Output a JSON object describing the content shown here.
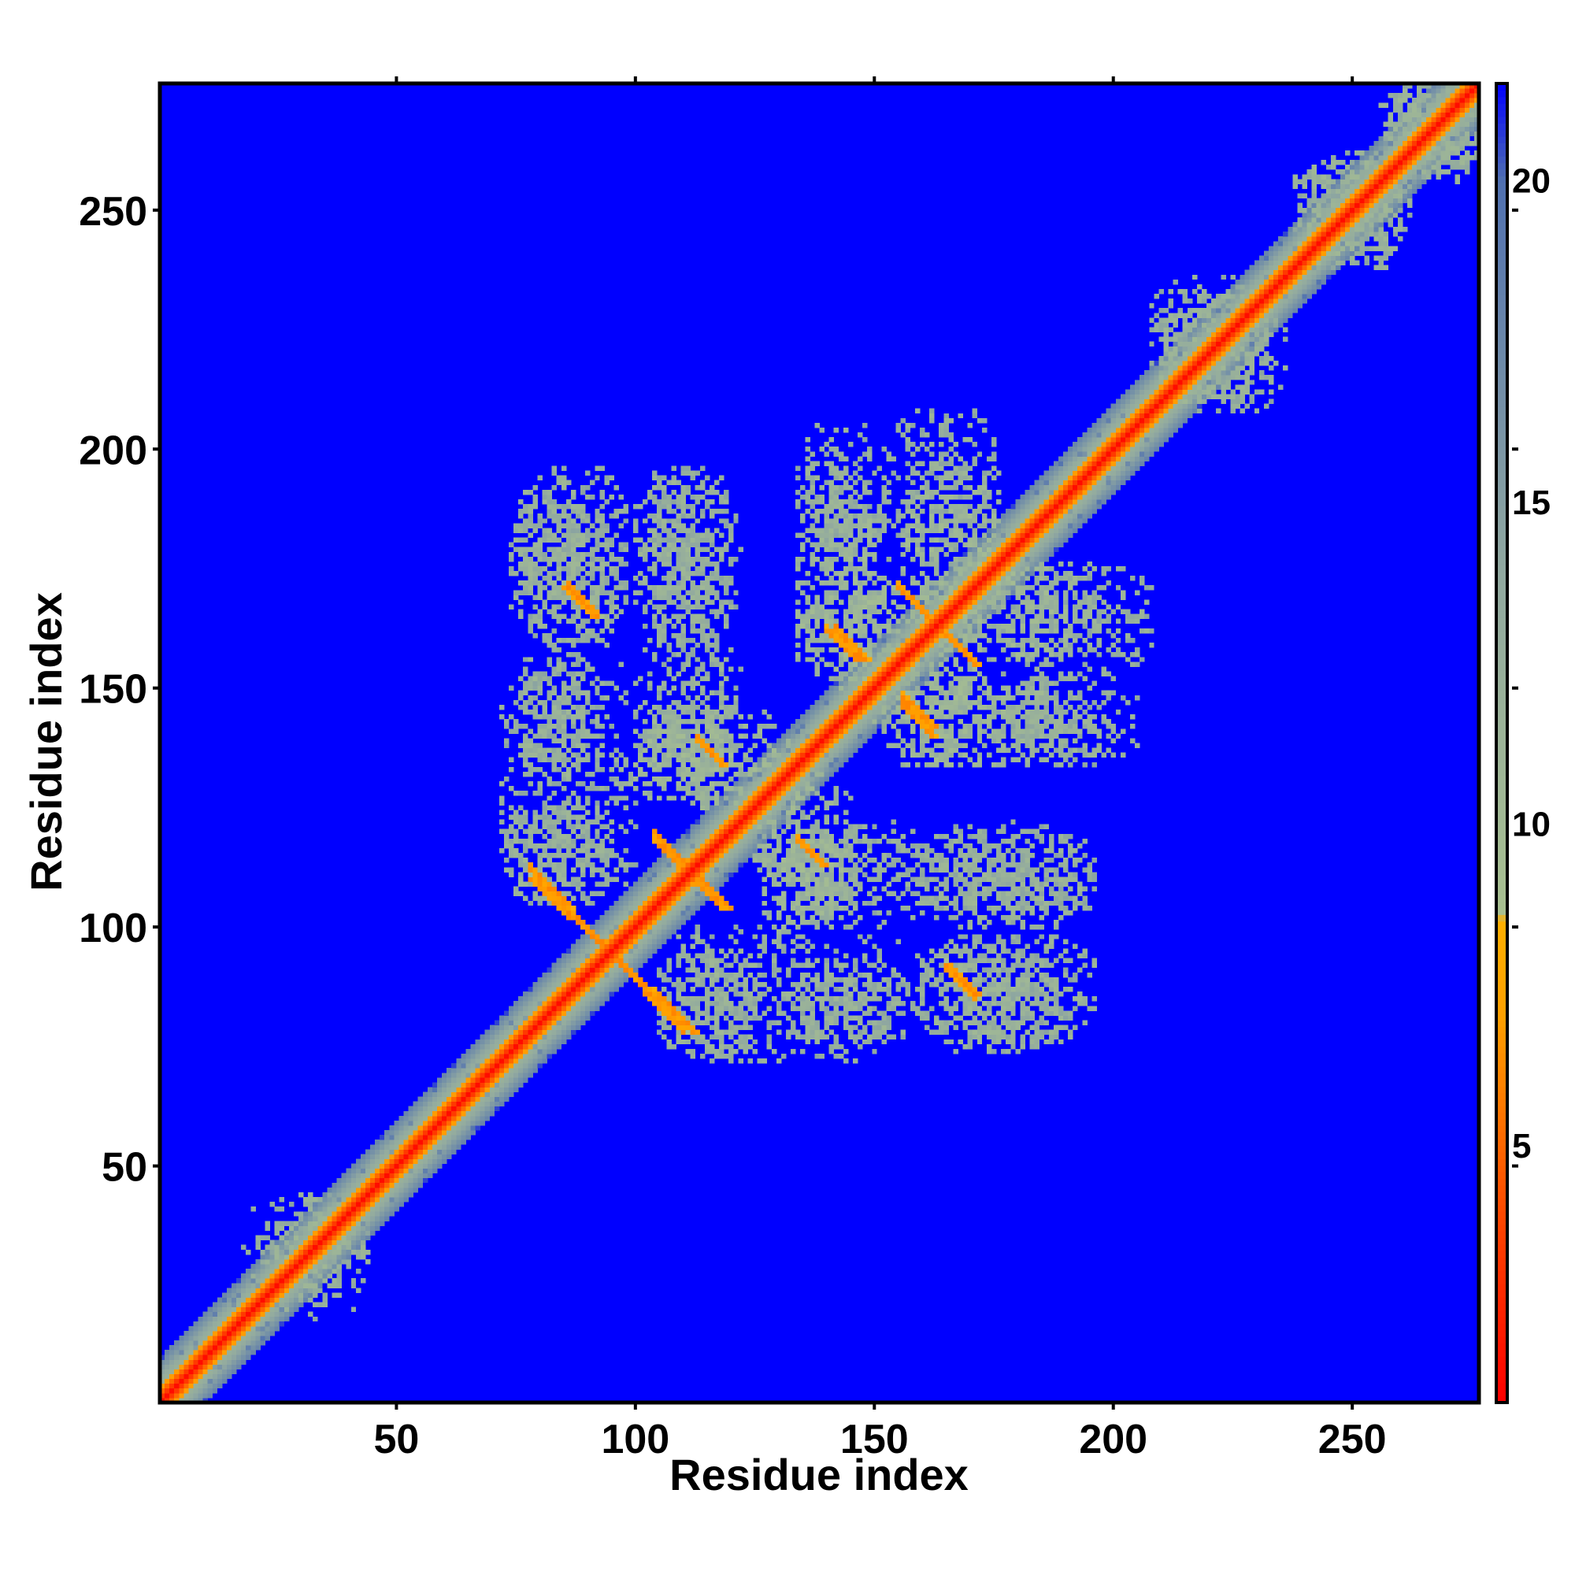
{
  "chart_data": {
    "type": "heatmap",
    "title": "",
    "xlabel": "Residue index",
    "ylabel": "Residue index",
    "xlim": [
      1,
      276
    ],
    "ylim": [
      1,
      276
    ],
    "x_ticks": [
      50,
      100,
      150,
      200,
      250
    ],
    "y_ticks": [
      50,
      100,
      150,
      200,
      250
    ],
    "colorbar": {
      "range": [
        1,
        21.5
      ],
      "ticks": [
        5,
        10,
        15,
        20
      ],
      "stops": [
        {
          "value": 1,
          "color": "#ff0000"
        },
        {
          "value": 4,
          "color": "#ff4a00"
        },
        {
          "value": 7,
          "color": "#ffa000"
        },
        {
          "value": 8.5,
          "color": "#ffb000"
        },
        {
          "value": 8.6,
          "color": "#a8c090"
        },
        {
          "value": 14,
          "color": "#90a8a0"
        },
        {
          "value": 20,
          "color": "#5070b0"
        },
        {
          "value": 21.5,
          "color": "#0000ff"
        }
      ]
    },
    "background_value": 21.5,
    "background_color": "#0000ff",
    "diagonal_band": {
      "center_value": 1.5,
      "inner_width": 3,
      "outer_width": 9,
      "outer_value": 11
    },
    "contact_segments": [
      {
        "from": [
          78,
          110
        ],
        "to": [
          112,
          78
        ],
        "value": 6,
        "width": 2
      },
      {
        "from": [
          104,
          118
        ],
        "to": [
          119,
          104
        ],
        "value": 6,
        "width": 2
      },
      {
        "from": [
          85,
          171
        ],
        "to": [
          91,
          165
        ],
        "value": 6,
        "width": 2
      },
      {
        "from": [
          113,
          139
        ],
        "to": [
          118,
          134
        ],
        "value": 6,
        "width": 2
      },
      {
        "from": [
          134,
          118
        ],
        "to": [
          139,
          113
        ],
        "value": 6,
        "width": 2
      },
      {
        "from": [
          140,
          162
        ],
        "to": [
          146,
          156
        ],
        "value": 6,
        "width": 2
      },
      {
        "from": [
          155,
          171
        ],
        "to": [
          171,
          155
        ],
        "value": 6,
        "width": 2
      },
      {
        "from": [
          156,
          148
        ],
        "to": [
          162,
          142
        ],
        "value": 6,
        "width": 2
      },
      {
        "from": [
          165,
          92
        ],
        "to": [
          171,
          86
        ],
        "value": 6,
        "width": 2
      }
    ],
    "contact_regions": [
      {
        "x": [
          18,
          44
        ],
        "y": [
          22,
          44
        ],
        "value": 12,
        "density": 0.35
      },
      {
        "x": [
          75,
          98
        ],
        "y": [
          160,
          196
        ],
        "value": 12,
        "density": 0.5
      },
      {
        "x": [
          100,
          120
        ],
        "y": [
          158,
          196
        ],
        "value": 12,
        "density": 0.5
      },
      {
        "x": [
          72,
          92
        ],
        "y": [
          132,
          152
        ],
        "value": 12,
        "density": 0.45
      },
      {
        "x": [
          100,
          120
        ],
        "y": [
          125,
          146
        ],
        "value": 11,
        "density": 0.55
      },
      {
        "x": [
          73,
          95
        ],
        "y": [
          105,
          125
        ],
        "value": 12,
        "density": 0.5
      },
      {
        "x": [
          105,
          140
        ],
        "y": [
          72,
          100
        ],
        "value": 12,
        "density": 0.45
      },
      {
        "x": [
          126,
          146
        ],
        "y": [
          100,
          132
        ],
        "value": 11,
        "density": 0.5
      },
      {
        "x": [
          134,
          152
        ],
        "y": [
          175,
          205
        ],
        "value": 12,
        "density": 0.45
      },
      {
        "x": [
          134,
          156
        ],
        "y": [
          150,
          175
        ],
        "value": 11,
        "density": 0.55
      },
      {
        "x": [
          152,
          176
        ],
        "y": [
          176,
          208
        ],
        "value": 12,
        "density": 0.45
      },
      {
        "x": [
          160,
          195
        ],
        "y": [
          155,
          176
        ],
        "value": 11,
        "density": 0.5
      },
      {
        "x": [
          155,
          185
        ],
        "y": [
          134,
          153
        ],
        "value": 11,
        "density": 0.5
      },
      {
        "x": [
          175,
          195
        ],
        "y": [
          135,
          150
        ],
        "value": 12,
        "density": 0.45
      },
      {
        "x": [
          138,
          160
        ],
        "y": [
          100,
          122
        ],
        "value": 12,
        "density": 0.45
      },
      {
        "x": [
          160,
          195
        ],
        "y": [
          100,
          122
        ],
        "value": 12,
        "density": 0.45
      },
      {
        "x": [
          135,
          160
        ],
        "y": [
          76,
          98
        ],
        "value": 12,
        "density": 0.45
      },
      {
        "x": [
          160,
          190
        ],
        "y": [
          74,
          98
        ],
        "value": 12,
        "density": 0.45
      },
      {
        "x": [
          208,
          232
        ],
        "y": [
          210,
          236
        ],
        "value": 12,
        "density": 0.5
      },
      {
        "x": [
          238,
          260
        ],
        "y": [
          238,
          262
        ],
        "value": 12,
        "density": 0.5
      },
      {
        "x": [
          256,
          276
        ],
        "y": [
          258,
          276
        ],
        "value": 12,
        "density": 0.55
      }
    ]
  }
}
